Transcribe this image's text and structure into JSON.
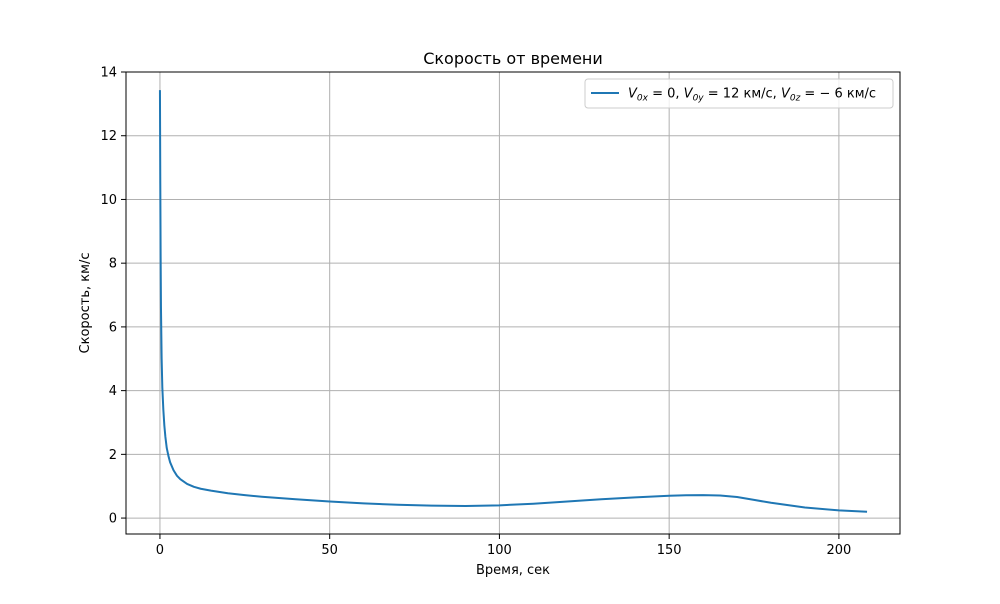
{
  "chart_data": {
    "type": "line",
    "title": "Скорость от времени",
    "xlabel": "Время, сек",
    "ylabel": "Скорость, км/с",
    "xlim": [
      -10,
      218
    ],
    "ylim": [
      -0.5,
      14
    ],
    "xticks": [
      0,
      50,
      100,
      150,
      200
    ],
    "yticks": [
      0,
      2,
      4,
      6,
      8,
      10,
      12,
      14
    ],
    "grid": true,
    "legend_position": "top-right",
    "series": [
      {
        "name": "V0x = 0, V0y = 12 км/с, V0z = −6 км/с",
        "name_parts": {
          "v0x": "V",
          "v0x_sub": "0x",
          "v0x_value": " = 0, ",
          "v0y": "V",
          "v0y_sub": "0y",
          "v0y_value": " = 12 км/с, ",
          "v0z": "V",
          "v0z_sub": "0z",
          "v0z_value": " = − 6 км/с"
        },
        "color": "#1f77b4",
        "x": [
          0,
          0.1,
          0.2,
          0.3,
          0.5,
          0.7,
          1,
          1.3,
          1.6,
          2,
          2.5,
          3,
          4,
          5,
          6,
          8,
          10,
          12,
          15,
          20,
          25,
          30,
          40,
          50,
          60,
          70,
          80,
          90,
          100,
          110,
          120,
          130,
          140,
          150,
          155,
          160,
          165,
          170,
          175,
          180,
          190,
          200,
          208
        ],
        "y": [
          13.4,
          10.5,
          8.2,
          6.6,
          5.0,
          4.1,
          3.4,
          2.9,
          2.55,
          2.2,
          1.95,
          1.75,
          1.5,
          1.33,
          1.22,
          1.07,
          0.98,
          0.92,
          0.86,
          0.78,
          0.72,
          0.67,
          0.59,
          0.52,
          0.46,
          0.42,
          0.39,
          0.38,
          0.4,
          0.45,
          0.52,
          0.59,
          0.65,
          0.7,
          0.715,
          0.72,
          0.71,
          0.66,
          0.57,
          0.48,
          0.33,
          0.24,
          0.2
        ]
      }
    ]
  }
}
